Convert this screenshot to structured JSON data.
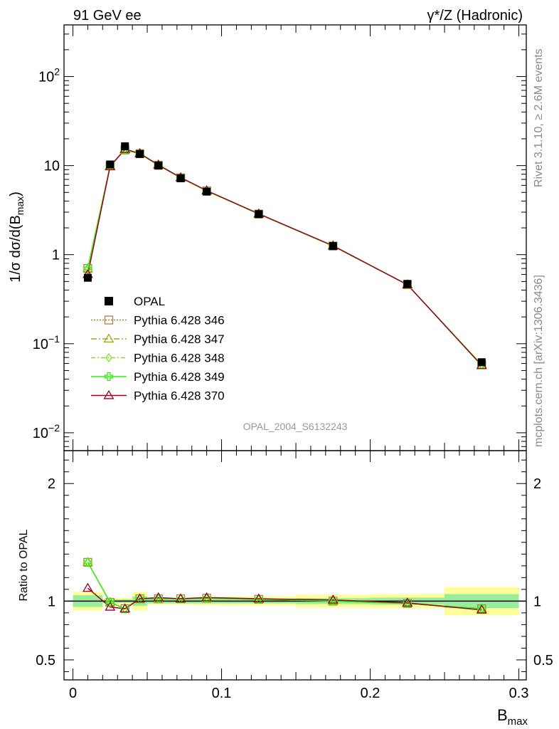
{
  "header": {
    "left_label": "91 GeV ee",
    "right_label": "γ*/Z (Hadronic)"
  },
  "side_labels": {
    "rivet": "Rivet 3.1.10, ≥ 2.6M events",
    "mcplots": "mcplots.cern.ch [arXiv:1306.3436]"
  },
  "watermark": "OPAL_2004_S6132243",
  "chart_data": [
    {
      "type": "scatter",
      "panel": "main",
      "scale": "log",
      "ylabel": "1/σ dσ/d(Bmax)",
      "xlim": [
        -0.006,
        0.305
      ],
      "ylim": [
        0.0063,
        380
      ],
      "y_ticks": [
        {
          "value": 0.01,
          "base": "10",
          "exp": "−2"
        },
        {
          "value": 0.1,
          "base": "10",
          "exp": "−1"
        },
        {
          "value": 1,
          "base": "1",
          "exp": ""
        },
        {
          "value": 10,
          "base": "10",
          "exp": ""
        },
        {
          "value": 100,
          "base": "10",
          "exp": "2"
        }
      ],
      "x": [
        0.01,
        0.025,
        0.035,
        0.045,
        0.0575,
        0.0725,
        0.09,
        0.125,
        0.175,
        0.225,
        0.275
      ],
      "data": {
        "name": "OPAL",
        "color": "#000000",
        "values": [
          0.55,
          10.3,
          16.5,
          13.5,
          10.0,
          7.2,
          5.1,
          2.85,
          1.25,
          0.47,
          0.062
        ]
      },
      "series": [
        {
          "name": "Pythia 6.428 346",
          "color": "#b08040",
          "marker": "square",
          "dash": "2,2",
          "values": [
            0.7,
            9.95,
            15.0,
            13.6,
            10.1,
            7.3,
            5.2,
            2.86,
            1.25,
            0.46,
            0.058
          ]
        },
        {
          "name": "Pythia 6.428 347",
          "color": "#a0aa10",
          "marker": "triangle",
          "dash": "8,3,2,3",
          "values": [
            0.7,
            9.95,
            15.0,
            13.6,
            10.1,
            7.3,
            5.2,
            2.86,
            1.25,
            0.46,
            0.058
          ]
        },
        {
          "name": "Pythia 6.428 348",
          "color": "#88dd22",
          "marker": "diamond",
          "dash": "6,3,2,3",
          "values": [
            0.7,
            9.95,
            15.0,
            13.6,
            10.1,
            7.3,
            5.2,
            2.86,
            1.25,
            0.46,
            0.058
          ]
        },
        {
          "name": "Pythia 6.428 349",
          "color": "#33ee11",
          "marker": "cross",
          "dash": "",
          "values": [
            0.7,
            9.95,
            15.0,
            13.6,
            10.1,
            7.3,
            5.2,
            2.86,
            1.25,
            0.46,
            0.058
          ]
        },
        {
          "name": "Pythia 6.428 370",
          "color": "#990022",
          "marker": "triangle",
          "dash": "",
          "values": [
            0.6,
            9.75,
            15.3,
            13.7,
            10.2,
            7.35,
            5.25,
            2.88,
            1.26,
            0.46,
            0.057
          ]
        }
      ]
    },
    {
      "type": "line",
      "panel": "ratio",
      "ylabel": "Ratio to OPAL",
      "xlabel": "Bmax",
      "xlim": [
        -0.006,
        0.305
      ],
      "ylim": [
        0.33,
        2.28
      ],
      "x_ticks": [
        "0",
        "0.1",
        "0.2",
        "0.3"
      ],
      "y_ticks": [
        "0.5",
        "1",
        "2"
      ],
      "bins": [
        [
          0.0,
          0.02
        ],
        [
          0.02,
          0.03
        ],
        [
          0.03,
          0.04
        ],
        [
          0.04,
          0.05
        ],
        [
          0.05,
          0.065
        ],
        [
          0.065,
          0.08
        ],
        [
          0.08,
          0.1
        ],
        [
          0.1,
          0.15
        ],
        [
          0.15,
          0.2
        ],
        [
          0.2,
          0.25
        ],
        [
          0.25,
          0.3
        ]
      ],
      "band_inner": [
        0.05,
        0.015,
        0.015,
        0.04,
        0.02,
        0.02,
        0.02,
        0.02,
        0.025,
        0.03,
        0.06
      ],
      "band_outer": [
        0.08,
        0.025,
        0.03,
        0.08,
        0.03,
        0.03,
        0.035,
        0.04,
        0.055,
        0.06,
        0.12
      ],
      "x": [
        0.01,
        0.025,
        0.035,
        0.045,
        0.0575,
        0.0725,
        0.09,
        0.125,
        0.175,
        0.225,
        0.275
      ],
      "series": [
        {
          "name": "Pythia 6.428 346",
          "color": "#b08040",
          "marker": "square",
          "values": [
            1.33,
            0.99,
            0.935,
            1.02,
            1.02,
            1.02,
            1.025,
            1.015,
            1.0,
            0.98,
            0.935
          ]
        },
        {
          "name": "Pythia 6.428 347",
          "color": "#a0aa10",
          "marker": "triangle",
          "values": [
            1.33,
            0.99,
            0.935,
            1.02,
            1.02,
            1.02,
            1.025,
            1.015,
            1.0,
            0.98,
            0.935
          ]
        },
        {
          "name": "Pythia 6.428 348",
          "color": "#88dd22",
          "marker": "diamond",
          "values": [
            1.33,
            0.99,
            0.935,
            1.02,
            1.02,
            1.02,
            1.025,
            1.015,
            1.0,
            0.98,
            0.935
          ]
        },
        {
          "name": "Pythia 6.428 349",
          "color": "#33ee11",
          "marker": "cross",
          "values": [
            1.33,
            0.99,
            0.935,
            1.02,
            1.02,
            1.02,
            1.025,
            1.015,
            1.0,
            0.98,
            0.935
          ]
        },
        {
          "name": "Pythia 6.428 370",
          "color": "#990022",
          "marker": "triangle",
          "values": [
            1.11,
            0.95,
            0.935,
            1.02,
            1.03,
            1.02,
            1.03,
            1.02,
            1.01,
            0.985,
            0.925
          ]
        }
      ]
    }
  ]
}
